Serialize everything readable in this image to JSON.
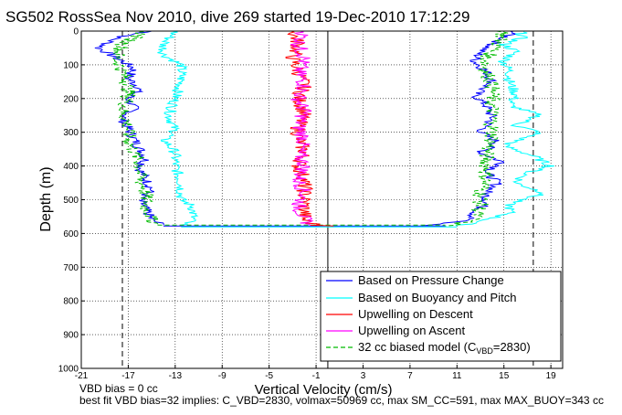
{
  "chart_data": {
    "type": "line",
    "title": "SG502 RossSea Nov 2010, dive 269 started 19-Dec-2010 17:12:29",
    "xlabel": "Vertical Velocity (cm/s)",
    "ylabel": "Depth (m)",
    "xlim": [
      -21,
      20
    ],
    "ylim": [
      0,
      1000
    ],
    "y_reversed": true,
    "grid": true,
    "x_ticks": [
      -21,
      -17,
      -13,
      -9,
      -5,
      -1,
      3,
      7,
      11,
      15,
      19
    ],
    "y_ticks": [
      0,
      100,
      200,
      300,
      400,
      500,
      600,
      700,
      800,
      900,
      1000
    ],
    "legend_position": "lower-right",
    "series": [
      {
        "name": "Based on Pressure Change",
        "color": "#0000ff",
        "descent": [
          [
            -15,
            0
          ],
          [
            -18,
            20
          ],
          [
            -19.5,
            50
          ],
          [
            -18,
            80
          ],
          [
            -16.5,
            110
          ],
          [
            -17,
            140
          ],
          [
            -16,
            170
          ],
          [
            -17,
            200
          ],
          [
            -16.5,
            230
          ],
          [
            -17.5,
            260
          ],
          [
            -17,
            290
          ],
          [
            -16.5,
            320
          ],
          [
            -16,
            350
          ],
          [
            -15.5,
            380
          ],
          [
            -16,
            410
          ],
          [
            -15.5,
            440
          ],
          [
            -15,
            470
          ],
          [
            -16,
            500
          ],
          [
            -15.5,
            530
          ],
          [
            -15,
            560
          ],
          [
            -14,
            575
          ]
        ],
        "ascent": [
          [
            16,
            0
          ],
          [
            15,
            20
          ],
          [
            14,
            40
          ],
          [
            13,
            60
          ],
          [
            12.5,
            90
          ],
          [
            13.5,
            120
          ],
          [
            14,
            150
          ],
          [
            12.5,
            190
          ],
          [
            13.5,
            220
          ],
          [
            14,
            260
          ],
          [
            13,
            300
          ],
          [
            14.5,
            330
          ],
          [
            13,
            360
          ],
          [
            15,
            390
          ],
          [
            13.5,
            420
          ],
          [
            14.5,
            450
          ],
          [
            13.5,
            480
          ],
          [
            13.5,
            510
          ],
          [
            12.5,
            540
          ],
          [
            12,
            560
          ],
          [
            8,
            578
          ]
        ]
      },
      {
        "name": "Based on Buoyancy and Pitch",
        "color": "#00ffff",
        "descent": [
          [
            -13,
            0
          ],
          [
            -14,
            40
          ],
          [
            -14,
            70
          ],
          [
            -12.5,
            100
          ],
          [
            -12.5,
            150
          ],
          [
            -13,
            200
          ],
          [
            -13.5,
            250
          ],
          [
            -13,
            300
          ],
          [
            -14,
            320
          ],
          [
            -13,
            360
          ],
          [
            -13,
            400
          ],
          [
            -12.5,
            450
          ],
          [
            -12.5,
            500
          ],
          [
            -11.5,
            520
          ],
          [
            -11.5,
            560
          ],
          [
            -12.5,
            575
          ]
        ],
        "ascent": [
          [
            16.5,
            0
          ],
          [
            16.5,
            20
          ],
          [
            15,
            40
          ],
          [
            16,
            60
          ],
          [
            15,
            90
          ],
          [
            15.5,
            120
          ],
          [
            15.5,
            150
          ],
          [
            16,
            190
          ],
          [
            15.5,
            220
          ],
          [
            18,
            250
          ],
          [
            16,
            280
          ],
          [
            18,
            300
          ],
          [
            15,
            340
          ],
          [
            17.5,
            370
          ],
          [
            19,
            400
          ],
          [
            17,
            420
          ],
          [
            16,
            450
          ],
          [
            18.5,
            480
          ],
          [
            15.5,
            510
          ],
          [
            15.5,
            540
          ],
          [
            13.5,
            560
          ],
          [
            11,
            578
          ]
        ]
      },
      {
        "name": "Upwelling on Descent",
        "color": "#ff0000",
        "points": [
          [
            -3,
            0
          ],
          [
            -2.5,
            40
          ],
          [
            -3,
            80
          ],
          [
            -2.5,
            120
          ],
          [
            -2,
            160
          ],
          [
            -2.5,
            200
          ],
          [
            -2,
            240
          ],
          [
            -2.5,
            280
          ],
          [
            -2.5,
            320
          ],
          [
            -2,
            360
          ],
          [
            -2.5,
            400
          ],
          [
            -2,
            440
          ],
          [
            -2,
            480
          ],
          [
            -2,
            520
          ],
          [
            -2,
            560
          ],
          [
            -1,
            575
          ]
        ]
      },
      {
        "name": "Upwelling on Ascent",
        "color": "#ff00ff",
        "points": [
          [
            -2,
            0
          ],
          [
            -2.5,
            40
          ],
          [
            -2,
            80
          ],
          [
            -2.5,
            120
          ],
          [
            -2,
            160
          ],
          [
            -2.5,
            200
          ],
          [
            -2,
            240
          ],
          [
            -2.5,
            280
          ],
          [
            -2,
            320
          ],
          [
            -2.5,
            360
          ],
          [
            -2,
            400
          ],
          [
            -2.5,
            440
          ],
          [
            -2,
            480
          ],
          [
            -2.5,
            520
          ],
          [
            -2,
            560
          ],
          [
            -1.5,
            575
          ]
        ]
      },
      {
        "name": "32 cc biased model (C_VBD=2830)",
        "color": "#00bb00",
        "dash": true,
        "descent": [
          [
            -15.5,
            0
          ],
          [
            -17.5,
            40
          ],
          [
            -18,
            80
          ],
          [
            -17.5,
            120
          ],
          [
            -17,
            160
          ],
          [
            -17,
            200
          ],
          [
            -17.5,
            240
          ],
          [
            -17,
            280
          ],
          [
            -17,
            320
          ],
          [
            -16.5,
            360
          ],
          [
            -16,
            400
          ],
          [
            -16,
            440
          ],
          [
            -15.5,
            480
          ],
          [
            -15.5,
            520
          ],
          [
            -15,
            560
          ],
          [
            -14.5,
            575
          ]
        ],
        "ascent": [
          [
            15,
            0
          ],
          [
            14.5,
            40
          ],
          [
            13.5,
            80
          ],
          [
            13.5,
            120
          ],
          [
            14,
            160
          ],
          [
            14,
            200
          ],
          [
            14,
            240
          ],
          [
            14,
            280
          ],
          [
            14,
            320
          ],
          [
            13.5,
            360
          ],
          [
            13.5,
            400
          ],
          [
            13.5,
            440
          ],
          [
            13,
            480
          ],
          [
            13,
            520
          ],
          [
            12.5,
            560
          ],
          [
            10,
            578
          ]
        ]
      }
    ],
    "reference_lines": {
      "bottom_depth": 578,
      "zero_line_x": 0,
      "dashed_bounds_x": [
        -17.5,
        17.5
      ]
    }
  },
  "legend": {
    "items": [
      "Based on Pressure Change",
      "Based on Buoyancy and Pitch",
      "Upwelling on Descent",
      "Upwelling on Ascent",
      "32 cc biased model (C"
    ],
    "cvbd_sub": "VBD",
    "cvbd_tail": "=2830)"
  },
  "footer": {
    "line1": "VBD bias = 0 cc",
    "line2": "best fit VBD bias=32 implies: C_VBD=2830, volmax=50969 cc, max SM_CC=591, max MAX_BUOY=343 cc"
  }
}
